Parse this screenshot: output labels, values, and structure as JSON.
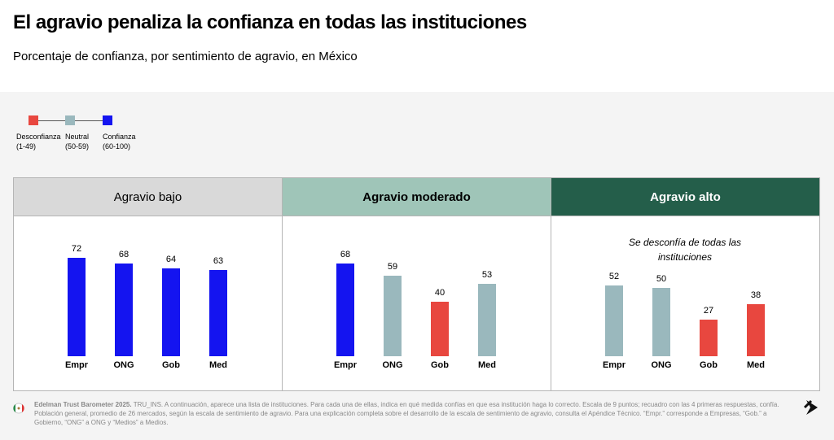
{
  "title": "El agravio penaliza la confianza en todas las instituciones",
  "subtitle": "Porcentaje de confianza, por sentimiento de agravio, en México",
  "legend": [
    {
      "label": "Desconfianza",
      "range": "(1-49)",
      "color": "#e8473f"
    },
    {
      "label": "Neutral",
      "range": "(50-59)",
      "color": "#9ab8bd"
    },
    {
      "label": "Confianza",
      "range": "(60-100)",
      "color": "#1414f0"
    }
  ],
  "chart_data": [
    {
      "type": "bar",
      "title": "Agravio bajo",
      "header_color": "#d9d9d9",
      "header_text_color": "#000000",
      "categories": [
        "Empr",
        "ONG",
        "Gob",
        "Med"
      ],
      "values": [
        72,
        68,
        64,
        63
      ],
      "colors": [
        "#1414f0",
        "#1414f0",
        "#1414f0",
        "#1414f0"
      ]
    },
    {
      "type": "bar",
      "title": "Agravio moderado",
      "header_color": "#9fc5b8",
      "header_text_color": "#000000",
      "categories": [
        "Empr",
        "ONG",
        "Gob",
        "Med"
      ],
      "values": [
        68,
        59,
        40,
        53
      ],
      "colors": [
        "#1414f0",
        "#9ab8bd",
        "#e8473f",
        "#9ab8bd"
      ]
    },
    {
      "type": "bar",
      "title": "Agravio alto",
      "header_color": "#245e4a",
      "header_text_color": "#ffffff",
      "annotation": "Se desconfía de todas las instituciones",
      "categories": [
        "Empr",
        "ONG",
        "Gob",
        "Med"
      ],
      "values": [
        52,
        50,
        27,
        38
      ],
      "colors": [
        "#9ab8bd",
        "#9ab8bd",
        "#e8473f",
        "#e8473f"
      ]
    }
  ],
  "footnote": {
    "source": "Edelman Trust Barometer 2025.",
    "text": "TRU_INS. A continuación, aparece una lista de instituciones. Para cada una de ellas, indica en qué medida confías en que esa institución haga lo correcto. Escala de 9 puntos; recuadro con las 4 primeras respuestas, confía. Población general, promedio de 26 mercados, según la escala de sentimiento de agravio. Para una explicación completa sobre el desarrollo de la escala de sentimiento de agravio, consulta el Apéndice Técnico. “Empr.” corresponde a Empresas, “Gob.” a Gobierno, “ONG” a ONG y “Medios” a Medios."
  }
}
